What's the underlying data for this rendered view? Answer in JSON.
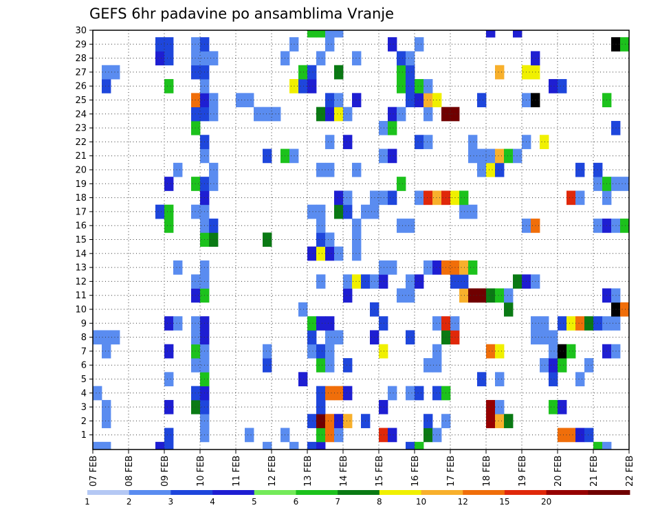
{
  "chart_data": {
    "type": "heatmap",
    "title": "GEFS 6hr padavine po ansamblima Vranje",
    "x_tick_labels": [
      "07 FEB",
      "08 FEB",
      "09 FEB",
      "10 FEB",
      "11 FEB",
      "12 FEB",
      "13 FEB",
      "14 FEB",
      "15 FEB",
      "16 FEB",
      "17 FEB",
      "18 FEB",
      "19 FEB",
      "20 FEB",
      "21 FEB",
      "22 FEB"
    ],
    "y_tick_labels": [
      "1",
      "2",
      "3",
      "4",
      "5",
      "6",
      "7",
      "8",
      "9",
      "10",
      "11",
      "12",
      "13",
      "14",
      "15",
      "16",
      "17",
      "18",
      "19",
      "20",
      "21",
      "22",
      "23",
      "24",
      "25",
      "26",
      "27",
      "28",
      "29",
      "30"
    ],
    "grid": "dotted",
    "color_scale": {
      "labels": [
        "1",
        "2",
        "3",
        "4",
        "5",
        "6",
        "7",
        "8",
        "10",
        "12",
        "15",
        "20"
      ],
      "colors": [
        "#b4c8f4",
        "#5a8cf0",
        "#1e46dc",
        "#1e1ed2",
        "#74ea5a",
        "#1cc21c",
        "#0a7a14",
        "#f0f000",
        "#f8b02c",
        "#f06e0a",
        "#e0280a",
        "#960000",
        "#700000"
      ]
    },
    "cells": [
      [
        0,
        0,
        1
      ],
      [
        1,
        0,
        1
      ],
      [
        7,
        0,
        3
      ],
      [
        8,
        0,
        2
      ],
      [
        19,
        0,
        1
      ],
      [
        22,
        0,
        1
      ],
      [
        24,
        0,
        2
      ],
      [
        25,
        0,
        3
      ],
      [
        35,
        0,
        2
      ],
      [
        36,
        0,
        5
      ],
      [
        56,
        0,
        5
      ],
      [
        57,
        0,
        1
      ],
      [
        8,
        1,
        2
      ],
      [
        12,
        1,
        1
      ],
      [
        17,
        1,
        1
      ],
      [
        21,
        1,
        1
      ],
      [
        25,
        1,
        5
      ],
      [
        26,
        1,
        9
      ],
      [
        27,
        1,
        1
      ],
      [
        32,
        1,
        10
      ],
      [
        33,
        1,
        3
      ],
      [
        37,
        1,
        6
      ],
      [
        38,
        1,
        1
      ],
      [
        52,
        1,
        9
      ],
      [
        53,
        1,
        9
      ],
      [
        54,
        1,
        3
      ],
      [
        55,
        1,
        2
      ],
      [
        1,
        2,
        1
      ],
      [
        12,
        2,
        1
      ],
      [
        24,
        2,
        2
      ],
      [
        25,
        2,
        12
      ],
      [
        26,
        2,
        9
      ],
      [
        27,
        2,
        3
      ],
      [
        28,
        2,
        8
      ],
      [
        30,
        2,
        2
      ],
      [
        37,
        2,
        2
      ],
      [
        39,
        2,
        1
      ],
      [
        44,
        2,
        11
      ],
      [
        45,
        2,
        8
      ],
      [
        46,
        2,
        6
      ],
      [
        1,
        3,
        1
      ],
      [
        8,
        3,
        3
      ],
      [
        11,
        3,
        6
      ],
      [
        12,
        3,
        2
      ],
      [
        25,
        3,
        2
      ],
      [
        32,
        3,
        3
      ],
      [
        44,
        3,
        11
      ],
      [
        45,
        3,
        1
      ],
      [
        51,
        3,
        5
      ],
      [
        52,
        3,
        3
      ],
      [
        0,
        4,
        1
      ],
      [
        11,
        4,
        2
      ],
      [
        12,
        4,
        3
      ],
      [
        25,
        4,
        2
      ],
      [
        26,
        4,
        9
      ],
      [
        27,
        4,
        9
      ],
      [
        28,
        4,
        3
      ],
      [
        33,
        4,
        1
      ],
      [
        35,
        4,
        1
      ],
      [
        36,
        4,
        2
      ],
      [
        38,
        4,
        2
      ],
      [
        39,
        4,
        5
      ],
      [
        8,
        5,
        1
      ],
      [
        12,
        5,
        5
      ],
      [
        23,
        5,
        3
      ],
      [
        43,
        5,
        2
      ],
      [
        45,
        5,
        1
      ],
      [
        51,
        5,
        2
      ],
      [
        54,
        5,
        1
      ],
      [
        11,
        6,
        1
      ],
      [
        12,
        6,
        1
      ],
      [
        19,
        6,
        2
      ],
      [
        25,
        6,
        5
      ],
      [
        26,
        6,
        1
      ],
      [
        28,
        6,
        2
      ],
      [
        37,
        6,
        1
      ],
      [
        38,
        6,
        1
      ],
      [
        50,
        6,
        1
      ],
      [
        51,
        6,
        3
      ],
      [
        52,
        6,
        5
      ],
      [
        55,
        6,
        1
      ],
      [
        1,
        7,
        1
      ],
      [
        8,
        7,
        3
      ],
      [
        11,
        7,
        5
      ],
      [
        12,
        7,
        1
      ],
      [
        19,
        7,
        1
      ],
      [
        24,
        7,
        1
      ],
      [
        25,
        7,
        2
      ],
      [
        26,
        7,
        1
      ],
      [
        32,
        7,
        7
      ],
      [
        38,
        7,
        1
      ],
      [
        44,
        7,
        9
      ],
      [
        45,
        7,
        7
      ],
      [
        51,
        7,
        1
      ],
      [
        52,
        7,
        13
      ],
      [
        53,
        7,
        5
      ],
      [
        57,
        7,
        3
      ],
      [
        58,
        7,
        1
      ],
      [
        0,
        8,
        1
      ],
      [
        1,
        8,
        1
      ],
      [
        2,
        8,
        1
      ],
      [
        11,
        8,
        1
      ],
      [
        12,
        8,
        3
      ],
      [
        24,
        8,
        2
      ],
      [
        26,
        8,
        1
      ],
      [
        27,
        8,
        1
      ],
      [
        31,
        8,
        3
      ],
      [
        35,
        8,
        2
      ],
      [
        39,
        8,
        6
      ],
      [
        40,
        8,
        10
      ],
      [
        49,
        8,
        1
      ],
      [
        50,
        8,
        1
      ],
      [
        51,
        8,
        1
      ],
      [
        8,
        9,
        3
      ],
      [
        9,
        9,
        1
      ],
      [
        11,
        9,
        1
      ],
      [
        12,
        9,
        3
      ],
      [
        24,
        9,
        5
      ],
      [
        25,
        9,
        3
      ],
      [
        26,
        9,
        3
      ],
      [
        32,
        9,
        2
      ],
      [
        38,
        9,
        1
      ],
      [
        39,
        9,
        10
      ],
      [
        40,
        9,
        1
      ],
      [
        49,
        9,
        1
      ],
      [
        50,
        9,
        1
      ],
      [
        52,
        9,
        2
      ],
      [
        53,
        9,
        7
      ],
      [
        54,
        9,
        9
      ],
      [
        55,
        9,
        6
      ],
      [
        56,
        9,
        2
      ],
      [
        57,
        9,
        1
      ],
      [
        58,
        9,
        1
      ],
      [
        23,
        10,
        1
      ],
      [
        31,
        10,
        2
      ],
      [
        46,
        10,
        6
      ],
      [
        58,
        10,
        13
      ],
      [
        59,
        10,
        9
      ],
      [
        11,
        11,
        3
      ],
      [
        12,
        11,
        5
      ],
      [
        28,
        11,
        3
      ],
      [
        34,
        11,
        1
      ],
      [
        35,
        11,
        1
      ],
      [
        41,
        11,
        8
      ],
      [
        42,
        11,
        12
      ],
      [
        43,
        11,
        12
      ],
      [
        44,
        11,
        6
      ],
      [
        45,
        11,
        5
      ],
      [
        46,
        11,
        1
      ],
      [
        57,
        11,
        3
      ],
      [
        58,
        11,
        1
      ],
      [
        11,
        12,
        1
      ],
      [
        12,
        12,
        1
      ],
      [
        25,
        12,
        1
      ],
      [
        28,
        12,
        1
      ],
      [
        29,
        12,
        7
      ],
      [
        30,
        12,
        2
      ],
      [
        31,
        12,
        1
      ],
      [
        32,
        12,
        3
      ],
      [
        35,
        12,
        1
      ],
      [
        36,
        12,
        3
      ],
      [
        40,
        12,
        2
      ],
      [
        41,
        12,
        2
      ],
      [
        47,
        12,
        6
      ],
      [
        48,
        12,
        3
      ],
      [
        49,
        12,
        1
      ],
      [
        9,
        13,
        1
      ],
      [
        12,
        13,
        1
      ],
      [
        32,
        13,
        1
      ],
      [
        33,
        13,
        1
      ],
      [
        37,
        13,
        1
      ],
      [
        38,
        13,
        3
      ],
      [
        39,
        13,
        9
      ],
      [
        40,
        13,
        9
      ],
      [
        41,
        13,
        8
      ],
      [
        42,
        13,
        5
      ],
      [
        24,
        14,
        3
      ],
      [
        25,
        14,
        7
      ],
      [
        26,
        14,
        3
      ],
      [
        27,
        14,
        1
      ],
      [
        29,
        14,
        1
      ],
      [
        12,
        15,
        5
      ],
      [
        13,
        15,
        6
      ],
      [
        19,
        15,
        6
      ],
      [
        25,
        15,
        2
      ],
      [
        26,
        15,
        1
      ],
      [
        29,
        15,
        1
      ],
      [
        8,
        16,
        5
      ],
      [
        12,
        16,
        1
      ],
      [
        13,
        16,
        2
      ],
      [
        25,
        16,
        1
      ],
      [
        29,
        16,
        1
      ],
      [
        34,
        16,
        1
      ],
      [
        35,
        16,
        1
      ],
      [
        48,
        16,
        1
      ],
      [
        49,
        16,
        9
      ],
      [
        56,
        16,
        1
      ],
      [
        57,
        16,
        3
      ],
      [
        58,
        16,
        1
      ],
      [
        59,
        16,
        5
      ],
      [
        7,
        17,
        2
      ],
      [
        8,
        17,
        5
      ],
      [
        11,
        17,
        1
      ],
      [
        12,
        17,
        1
      ],
      [
        24,
        17,
        1
      ],
      [
        25,
        17,
        1
      ],
      [
        27,
        17,
        6
      ],
      [
        28,
        17,
        2
      ],
      [
        30,
        17,
        1
      ],
      [
        31,
        17,
        1
      ],
      [
        41,
        17,
        1
      ],
      [
        42,
        17,
        1
      ],
      [
        12,
        18,
        3
      ],
      [
        27,
        18,
        3
      ],
      [
        28,
        18,
        1
      ],
      [
        31,
        18,
        1
      ],
      [
        32,
        18,
        1
      ],
      [
        33,
        18,
        2
      ],
      [
        36,
        18,
        1
      ],
      [
        37,
        18,
        10
      ],
      [
        38,
        18,
        8
      ],
      [
        39,
        18,
        10
      ],
      [
        40,
        18,
        7
      ],
      [
        41,
        18,
        5
      ],
      [
        53,
        18,
        10
      ],
      [
        54,
        18,
        1
      ],
      [
        57,
        18,
        1
      ],
      [
        8,
        19,
        3
      ],
      [
        11,
        19,
        5
      ],
      [
        12,
        19,
        2
      ],
      [
        13,
        19,
        1
      ],
      [
        34,
        19,
        5
      ],
      [
        56,
        19,
        1
      ],
      [
        57,
        19,
        5
      ],
      [
        58,
        19,
        1
      ],
      [
        59,
        19,
        1
      ],
      [
        9,
        20,
        1
      ],
      [
        13,
        20,
        1
      ],
      [
        25,
        20,
        1
      ],
      [
        26,
        20,
        1
      ],
      [
        29,
        20,
        1
      ],
      [
        43,
        20,
        1
      ],
      [
        44,
        20,
        7
      ],
      [
        45,
        20,
        2
      ],
      [
        54,
        20,
        2
      ],
      [
        56,
        20,
        2
      ],
      [
        12,
        21,
        1
      ],
      [
        19,
        21,
        2
      ],
      [
        21,
        21,
        5
      ],
      [
        22,
        21,
        1
      ],
      [
        32,
        21,
        1
      ],
      [
        33,
        21,
        3
      ],
      [
        42,
        21,
        1
      ],
      [
        43,
        21,
        1
      ],
      [
        44,
        21,
        1
      ],
      [
        45,
        21,
        8
      ],
      [
        46,
        21,
        5
      ],
      [
        47,
        21,
        1
      ],
      [
        12,
        22,
        2
      ],
      [
        26,
        22,
        1
      ],
      [
        28,
        22,
        3
      ],
      [
        36,
        22,
        2
      ],
      [
        37,
        22,
        1
      ],
      [
        42,
        22,
        1
      ],
      [
        48,
        22,
        1
      ],
      [
        50,
        22,
        7
      ],
      [
        11,
        23,
        5
      ],
      [
        32,
        23,
        1
      ],
      [
        33,
        23,
        5
      ],
      [
        58,
        23,
        2
      ],
      [
        11,
        24,
        2
      ],
      [
        12,
        24,
        2
      ],
      [
        13,
        24,
        1
      ],
      [
        18,
        24,
        1
      ],
      [
        19,
        24,
        1
      ],
      [
        20,
        24,
        1
      ],
      [
        25,
        24,
        6
      ],
      [
        26,
        24,
        3
      ],
      [
        27,
        24,
        7
      ],
      [
        28,
        24,
        1
      ],
      [
        33,
        24,
        3
      ],
      [
        34,
        24,
        1
      ],
      [
        37,
        24,
        1
      ],
      [
        39,
        24,
        12
      ],
      [
        40,
        24,
        12
      ],
      [
        11,
        25,
        9
      ],
      [
        12,
        25,
        3
      ],
      [
        13,
        25,
        1
      ],
      [
        16,
        25,
        1
      ],
      [
        17,
        25,
        1
      ],
      [
        26,
        25,
        2
      ],
      [
        27,
        25,
        1
      ],
      [
        29,
        25,
        3
      ],
      [
        35,
        25,
        2
      ],
      [
        36,
        25,
        3
      ],
      [
        37,
        25,
        8
      ],
      [
        38,
        25,
        7
      ],
      [
        43,
        25,
        2
      ],
      [
        48,
        25,
        1
      ],
      [
        49,
        25,
        13
      ],
      [
        57,
        25,
        5
      ],
      [
        1,
        26,
        2
      ],
      [
        8,
        26,
        5
      ],
      [
        12,
        26,
        1
      ],
      [
        22,
        26,
        7
      ],
      [
        23,
        26,
        2
      ],
      [
        24,
        26,
        3
      ],
      [
        34,
        26,
        5
      ],
      [
        35,
        26,
        2
      ],
      [
        36,
        26,
        5
      ],
      [
        37,
        26,
        1
      ],
      [
        51,
        26,
        3
      ],
      [
        52,
        26,
        2
      ],
      [
        1,
        27,
        1
      ],
      [
        2,
        27,
        1
      ],
      [
        11,
        27,
        2
      ],
      [
        12,
        27,
        2
      ],
      [
        23,
        27,
        5
      ],
      [
        24,
        27,
        2
      ],
      [
        27,
        27,
        6
      ],
      [
        34,
        27,
        5
      ],
      [
        35,
        27,
        2
      ],
      [
        45,
        27,
        8
      ],
      [
        48,
        27,
        7
      ],
      [
        49,
        27,
        7
      ],
      [
        7,
        28,
        3
      ],
      [
        8,
        28,
        2
      ],
      [
        11,
        28,
        1
      ],
      [
        12,
        28,
        1
      ],
      [
        13,
        28,
        1
      ],
      [
        21,
        28,
        1
      ],
      [
        25,
        28,
        1
      ],
      [
        29,
        28,
        1
      ],
      [
        34,
        28,
        2
      ],
      [
        35,
        28,
        1
      ],
      [
        49,
        28,
        3
      ],
      [
        7,
        29,
        2
      ],
      [
        8,
        29,
        2
      ],
      [
        11,
        29,
        1
      ],
      [
        12,
        29,
        2
      ],
      [
        22,
        29,
        1
      ],
      [
        26,
        29,
        1
      ],
      [
        33,
        29,
        3
      ],
      [
        36,
        29,
        1
      ],
      [
        58,
        29,
        13
      ],
      [
        59,
        29,
        5
      ],
      [
        24,
        30,
        5
      ],
      [
        25,
        30,
        5
      ],
      [
        26,
        30,
        1
      ],
      [
        27,
        30,
        1
      ],
      [
        44,
        30,
        3
      ],
      [
        47,
        30,
        3
      ]
    ]
  }
}
